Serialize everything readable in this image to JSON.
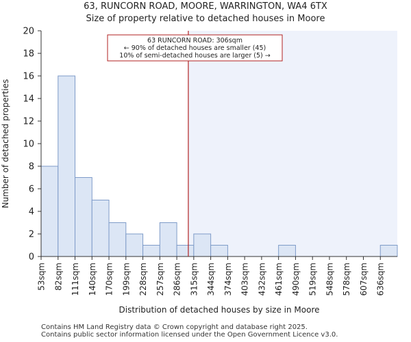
{
  "chart_data": {
    "type": "bar",
    "title": "63, RUNCORN ROAD, MOORE, WARRINGTON, WA4 6TX",
    "subtitle": "Size of property relative to detached houses in Moore",
    "xlabel": "Distribution of detached houses by size in Moore",
    "ylabel": "Number of detached properties",
    "categories": [
      "53sqm",
      "82sqm",
      "111sqm",
      "140sqm",
      "170sqm",
      "199sqm",
      "228sqm",
      "257sqm",
      "286sqm",
      "315sqm",
      "344sqm",
      "374sqm",
      "403sqm",
      "432sqm",
      "461sqm",
      "490sqm",
      "519sqm",
      "548sqm",
      "578sqm",
      "607sqm",
      "636sqm"
    ],
    "values": [
      8,
      16,
      7,
      5,
      3,
      2,
      1,
      3,
      1,
      2,
      1,
      0,
      0,
      0,
      1,
      0,
      0,
      0,
      0,
      0,
      1
    ],
    "ylim": [
      0,
      20
    ],
    "yticks": [
      0,
      2,
      4,
      6,
      8,
      10,
      12,
      14,
      16,
      18,
      20
    ],
    "grid": false,
    "marker_value_sqm": 306,
    "annotation": {
      "line1": "63 RUNCORN ROAD: 306sqm",
      "line2": "← 90% of detached houses are smaller (45)",
      "line3": "10% of semi-detached houses are larger (5) →"
    }
  },
  "colors": {
    "bar_fill": "#dce6f5",
    "bar_stroke": "#7e9bc8",
    "highlight_region": "#eef2fb",
    "marker_line": "#b22222",
    "annotation_border": "#b22222",
    "axis": "#333333"
  },
  "footer": {
    "line1": "Contains HM Land Registry data © Crown copyright and database right 2025.",
    "line2": "Contains public sector information licensed under the Open Government Licence v3.0."
  }
}
